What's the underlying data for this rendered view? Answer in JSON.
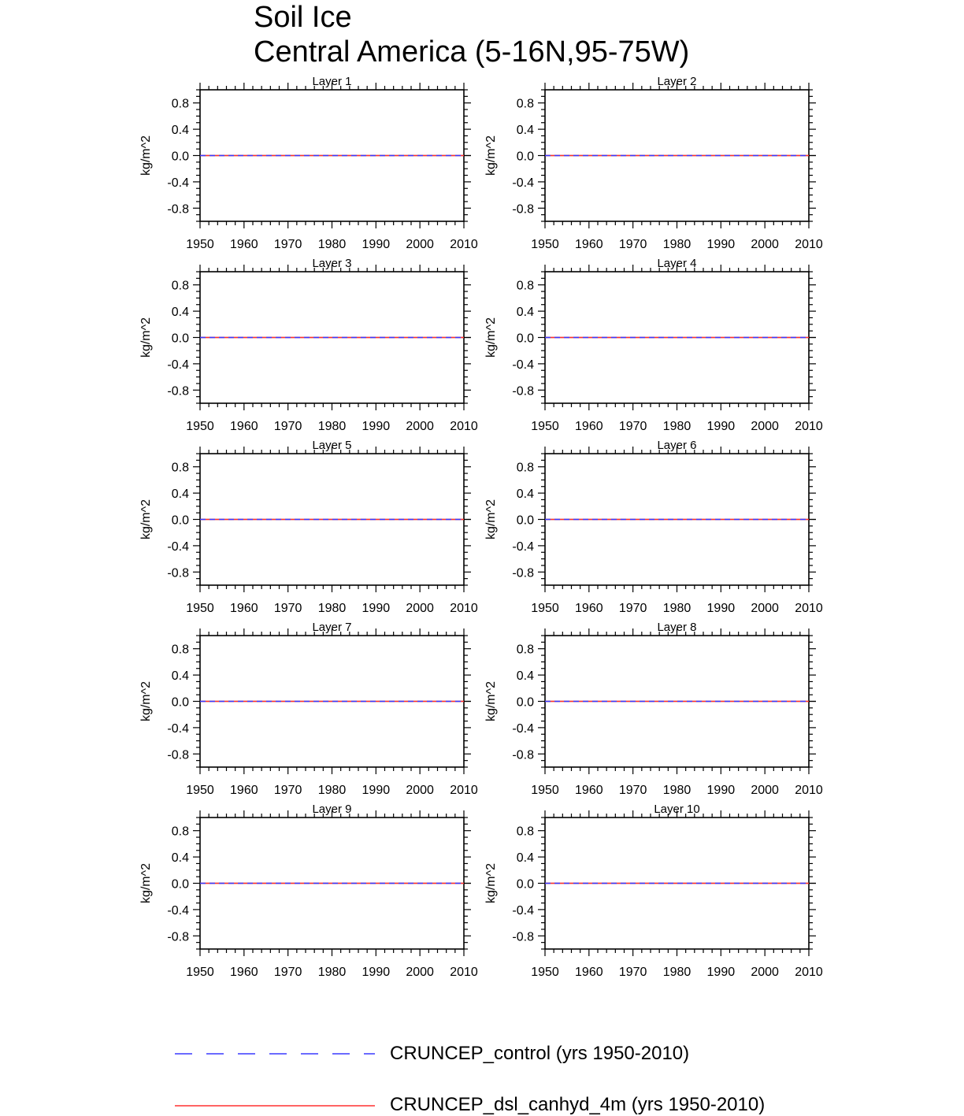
{
  "title_lines": [
    "Soil Ice",
    "Central America (5-16N,95-75W)"
  ],
  "colors": {
    "control": "#3a3aff",
    "dsl": "#ff3030",
    "axis": "#000000"
  },
  "chart_data": {
    "type": "line",
    "title": "Soil Ice",
    "subtitle": "Central America (5-16N,95-75W)",
    "ylabel": "kg/m^2",
    "xlim": [
      1950,
      2010
    ],
    "ylim": [
      -1.0,
      1.0
    ],
    "xticks": [
      "1950",
      "1960",
      "1970",
      "1980",
      "1990",
      "2000",
      "2010"
    ],
    "yticks": [
      "0.8",
      "0.4",
      "0.0",
      "-0.4",
      "-0.8"
    ],
    "panels": [
      {
        "title": "Layer 1"
      },
      {
        "title": "Layer 2"
      },
      {
        "title": "Layer 3"
      },
      {
        "title": "Layer 4"
      },
      {
        "title": "Layer 5"
      },
      {
        "title": "Layer 6"
      },
      {
        "title": "Layer 7"
      },
      {
        "title": "Layer 8"
      },
      {
        "title": "Layer 9"
      },
      {
        "title": "Layer 10"
      }
    ],
    "series": [
      {
        "name": "CRUNCEP_control (yrs 1950-2010)",
        "style": "dashed",
        "color": "#3a3aff",
        "x": [
          1950,
          2010
        ],
        "values": [
          0.0,
          0.0
        ]
      },
      {
        "name": "CRUNCEP_dsl_canhyd_4m (yrs 1950-2010)",
        "style": "solid",
        "color": "#ff3030",
        "x": [
          1950,
          2010
        ],
        "values": [
          0.0,
          0.0
        ]
      }
    ],
    "grid": false,
    "legend_position": "bottom"
  },
  "legend": {
    "items": [
      {
        "label": "CRUNCEP_control (yrs 1950-2010)"
      },
      {
        "label": "CRUNCEP_dsl_canhyd_4m (yrs 1950-2010)"
      }
    ]
  }
}
